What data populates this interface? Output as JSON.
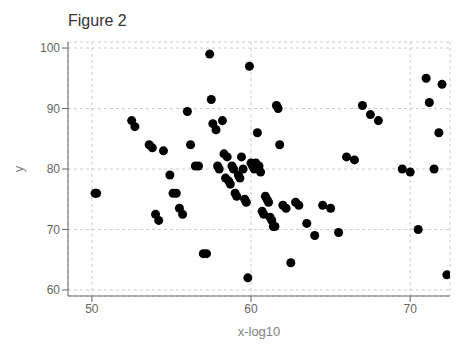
{
  "chart_data": {
    "type": "scatter",
    "title": "Figure 2",
    "xlabel": "x-log10",
    "ylabel": "y",
    "xlim": [
      48.5,
      72.5
    ],
    "ylim": [
      59,
      101
    ],
    "xticks": [
      50,
      60,
      70
    ],
    "yticks": [
      60,
      70,
      80,
      90,
      100
    ],
    "grid": true,
    "color": "black",
    "x": [
      50.2,
      50.3,
      52.5,
      52.7,
      53.6,
      53.8,
      54.0,
      54.2,
      54.5,
      54.9,
      55.1,
      55.3,
      55.5,
      55.7,
      56.0,
      56.2,
      56.5,
      56.7,
      57.0,
      57.2,
      57.4,
      57.5,
      57.6,
      57.8,
      57.9,
      58.0,
      58.2,
      58.3,
      58.4,
      58.5,
      58.6,
      58.7,
      58.8,
      58.9,
      59.0,
      59.1,
      59.2,
      59.3,
      59.4,
      59.5,
      59.6,
      59.7,
      59.8,
      59.9,
      60.0,
      60.1,
      60.2,
      60.3,
      60.4,
      60.5,
      60.6,
      60.7,
      60.8,
      60.9,
      61.0,
      61.1,
      61.2,
      61.3,
      61.4,
      61.5,
      61.6,
      61.7,
      61.8,
      62.0,
      62.2,
      62.5,
      62.8,
      63.0,
      63.5,
      64.0,
      64.5,
      65.0,
      65.5,
      66.0,
      66.5,
      67.0,
      67.5,
      68.0,
      69.5,
      70.0,
      70.5,
      71.0,
      71.2,
      71.5,
      71.8,
      72.0,
      72.3
    ],
    "values": [
      76.0,
      76.0,
      88.0,
      87.0,
      84.0,
      83.5,
      72.5,
      71.5,
      83.0,
      79.0,
      76.0,
      76.0,
      73.5,
      72.5,
      89.5,
      84.0,
      80.5,
      80.5,
      66.0,
      66.0,
      99.0,
      91.5,
      87.5,
      86.5,
      80.5,
      80.0,
      88.0,
      82.5,
      78.5,
      82.0,
      78.0,
      77.5,
      80.5,
      80.0,
      76.0,
      75.5,
      79.0,
      78.5,
      82.0,
      80.0,
      75.0,
      74.5,
      62.0,
      97.0,
      81.0,
      80.5,
      80.0,
      81.0,
      86.0,
      80.5,
      79.5,
      73.0,
      72.5,
      75.5,
      75.0,
      74.5,
      72.0,
      71.5,
      70.5,
      70.5,
      90.5,
      90.0,
      84.0,
      74.0,
      73.5,
      64.5,
      74.5,
      74.0,
      71.0,
      69.0,
      74.0,
      73.5,
      69.5,
      82.0,
      81.5,
      90.5,
      89.0,
      88.0,
      80.0,
      79.5,
      70.0,
      95.0,
      91.0,
      80.0,
      86.0,
      94.0,
      62.5
    ]
  }
}
